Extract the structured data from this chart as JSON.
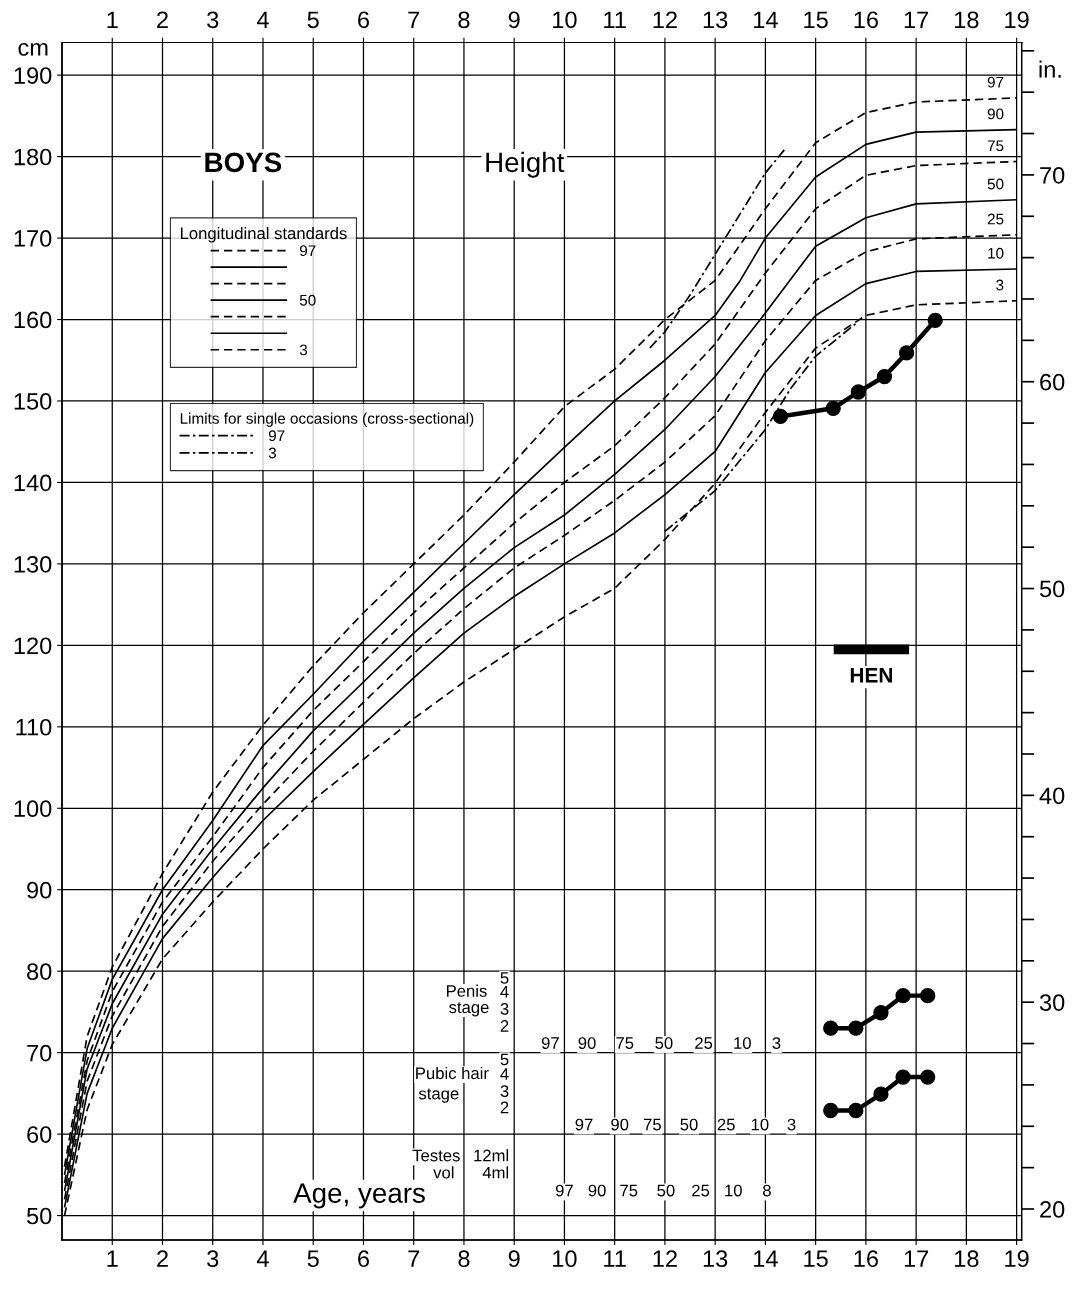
{
  "chart_data": {
    "type": "line",
    "xlabel": "Age, years",
    "ylabel": "cm",
    "y2label": "in.",
    "legend_title": "Longitudinal standards",
    "legend": "top left",
    "grid": true,
    "xlim": [
      0,
      19.1
    ],
    "xticks": [
      1,
      2,
      3,
      4,
      5,
      6,
      7,
      8,
      9,
      10,
      11,
      12,
      13,
      14,
      15,
      16,
      17,
      18,
      19
    ],
    "x2lim": [
      0,
      19.1
    ],
    "x2ticks": [
      1,
      2,
      3,
      4,
      5,
      6,
      7,
      8,
      9,
      10,
      11,
      12,
      13,
      14,
      15,
      16,
      17,
      18,
      19
    ],
    "ylim": [
      47,
      194
    ],
    "yticks": [
      50,
      60,
      70,
      80,
      90,
      100,
      110,
      120,
      130,
      140,
      150,
      160,
      170,
      180,
      190
    ],
    "y2lim": [
      18.5,
      76.4
    ],
    "y2ticks": [
      20,
      {
        "value": 22,
        "label": null
      },
      {
        "value": 24,
        "label": null
      },
      {
        "value": 26,
        "label": null
      },
      {
        "value": 28,
        "label": null
      },
      30,
      {
        "value": 32,
        "label": null
      },
      {
        "value": 34,
        "label": null
      },
      {
        "value": 36,
        "label": null
      },
      {
        "value": 38,
        "label": null
      },
      40,
      {
        "value": 42,
        "label": null
      },
      {
        "value": 44,
        "label": null
      },
      {
        "value": 46,
        "label": null
      },
      {
        "value": 48,
        "label": null
      },
      50,
      {
        "value": 52,
        "label": null
      },
      {
        "value": 54,
        "label": null
      },
      {
        "value": 56,
        "label": null
      },
      {
        "value": 58,
        "label": null
      },
      60,
      {
        "value": 62,
        "label": null
      },
      {
        "value": 64,
        "label": null
      },
      {
        "value": 66,
        "label": null
      },
      {
        "value": 68,
        "label": null
      },
      70,
      {
        "value": 72,
        "label": null
      },
      {
        "value": 74,
        "label": null
      },
      {
        "value": 76,
        "label": null
      }
    ],
    "series": [
      {
        "name": "97",
        "color": "#000000",
        "line_style": "dashed",
        "marker": "none",
        "x": [
          0.05,
          0.5,
          1,
          2,
          3,
          4,
          5,
          6,
          7,
          8,
          9,
          10,
          11,
          12,
          13,
          14,
          15,
          16,
          17,
          19
        ],
        "values": [
          56,
          72,
          80.5,
          92,
          102,
          110.2,
          117.5,
          124,
          130,
          136,
          142.5,
          149.3,
          153.9,
          160,
          164.8,
          173.6,
          181.7,
          185.4,
          186.7,
          187.2
        ]
      },
      {
        "name": "90",
        "color": "#000000",
        "line_style": "solid",
        "marker": "none",
        "x": [
          0.05,
          0.5,
          1,
          2,
          3,
          4,
          5,
          6,
          7,
          8,
          9,
          10,
          11,
          12,
          13,
          13.5,
          14,
          15,
          16,
          17,
          19
        ],
        "values": [
          55,
          70.5,
          79,
          90,
          98.5,
          107.7,
          114,
          120.5,
          126.5,
          132.5,
          138.5,
          144.3,
          150,
          155,
          160.5,
          164.8,
          170,
          177.5,
          181.5,
          183,
          183.3
        ]
      },
      {
        "name": "75",
        "color": "#000000",
        "line_style": "dashed",
        "marker": "none",
        "x": [
          0.05,
          0.5,
          1,
          2,
          3,
          4,
          5,
          6,
          7,
          8,
          9,
          10,
          11,
          12,
          13,
          14,
          15,
          16,
          17,
          19
        ],
        "values": [
          54,
          69,
          77.5,
          88.5,
          96.5,
          105,
          112,
          118,
          124,
          129.5,
          135,
          140,
          144.5,
          150.4,
          157,
          165.7,
          173.6,
          177.7,
          178.9,
          179.4
        ]
      },
      {
        "name": "50",
        "color": "#000000",
        "line_style": "solid",
        "marker": "none",
        "x": [
          0.05,
          0.5,
          1,
          2,
          3,
          4,
          5,
          6,
          7,
          8,
          9,
          10,
          11,
          12,
          13,
          13.9,
          15,
          16,
          17,
          19
        ],
        "values": [
          53,
          68,
          76,
          87,
          95,
          102.5,
          109.5,
          115.5,
          121.5,
          127,
          132,
          136,
          141,
          146.5,
          153,
          160,
          169,
          172.5,
          174.2,
          174.7
        ]
      },
      {
        "name": "25",
        "color": "#000000",
        "line_style": "dashed",
        "marker": "none",
        "x": [
          0.05,
          0.5,
          1,
          2,
          3,
          4,
          5,
          6,
          7,
          8,
          9,
          10,
          11,
          12,
          13,
          14,
          15,
          16,
          17,
          19
        ],
        "values": [
          52,
          66.5,
          74.5,
          85.5,
          93.5,
          100.5,
          107,
          113,
          119,
          124.5,
          129.5,
          133.5,
          137.8,
          142.5,
          148.2,
          157.4,
          164.8,
          168.3,
          169.9,
          170.4
        ]
      },
      {
        "name": "10",
        "color": "#000000",
        "line_style": "solid",
        "marker": "none",
        "x": [
          0.05,
          0.5,
          1,
          2,
          3,
          4,
          5,
          6,
          7,
          8,
          9,
          10,
          11,
          12,
          13,
          14,
          15,
          16,
          17,
          19
        ],
        "values": [
          51,
          65,
          73,
          84,
          91.5,
          98.5,
          104.5,
          110.3,
          116,
          121.5,
          126,
          130,
          133.8,
          138.5,
          143.8,
          153.5,
          160.5,
          164.4,
          165.9,
          166.2
        ]
      },
      {
        "name": "3",
        "color": "#000000",
        "line_style": "dashed",
        "marker": "none",
        "x": [
          0.05,
          0.5,
          1,
          2,
          3,
          4,
          5,
          6,
          7,
          8,
          9,
          10,
          11,
          12,
          13,
          14,
          15,
          16,
          17,
          19
        ],
        "values": [
          50,
          63,
          71,
          81.5,
          88.5,
          95,
          101,
          106,
          111,
          115.5,
          119.5,
          123.5,
          127,
          133,
          139.9,
          148.6,
          156.5,
          160.5,
          161.8,
          162.3
        ]
      },
      {
        "name": "97",
        "color": "#000000",
        "line_style": "dashdot",
        "marker": "none",
        "x": [
          11.7,
          12,
          12.5,
          13,
          13.5,
          14,
          14.4
        ],
        "values": [
          156.5,
          158.5,
          163,
          168,
          173,
          178,
          181
        ]
      },
      {
        "name": "3",
        "color": "#000000",
        "line_style": "dashdot",
        "marker": "none",
        "x": [
          12,
          13,
          14,
          14.5,
          15,
          15.8
        ],
        "values": [
          134,
          139,
          146.5,
          151.5,
          155.5,
          159.5
        ]
      },
      {
        "color": "#000000",
        "line_style": "solid",
        "marker": "circle",
        "x": [
          14.3,
          15.35,
          15.85,
          16.37,
          16.81,
          17.38
        ],
        "values": [
          148.1,
          149.1,
          151.1,
          153,
          155.9,
          159.9
        ]
      },
      {
        "color": "#000000",
        "line_style": "solid",
        "marker": "circle",
        "x": [
          15.3,
          15.8,
          16.3,
          16.74,
          17.23
        ],
        "values": [
          73,
          73,
          74.9,
          77,
          77
        ]
      },
      {
        "color": "#000000",
        "line_style": "solid",
        "marker": "circle",
        "x": [
          15.3,
          15.8,
          16.3,
          16.74,
          17.23
        ],
        "values": [
          62.9,
          62.9,
          64.9,
          67,
          67
        ]
      },
      {
        "name": "HEN",
        "color": "#000000",
        "line_style": "solid",
        "marker": "none",
        "x": [
          15.36,
          16.86
        ],
        "values": [
          119.5,
          119.5
        ]
      }
    ],
    "annotations": [
      "Limits for single occasions (cross-sectional)",
      "BOYS",
      "Height",
      "Penis",
      "stage",
      "5",
      "4",
      "3",
      "2",
      "97",
      "90",
      "75",
      "50",
      "25",
      "10",
      "3",
      "Pubic hair",
      "stage",
      "5",
      "4",
      "3",
      "2",
      "97",
      "90",
      "75",
      "50",
      "25",
      "10",
      "3",
      "Testes",
      "vol",
      "12ml",
      "4ml",
      "97",
      "90",
      "75",
      "50",
      "25",
      "10",
      "8"
    ]
  }
}
